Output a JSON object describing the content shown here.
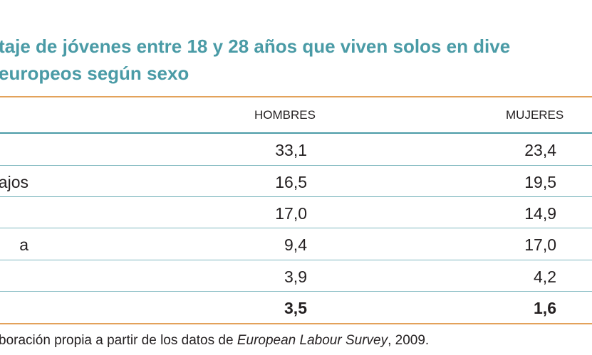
{
  "title": {
    "line1": "taje de jóvenes entre 18 y 28 años que viven solos en dive",
    "line2": "europeos según sexo"
  },
  "table": {
    "headers": {
      "men": "HOMBRES",
      "women": "MUJERES"
    },
    "rows": [
      {
        "label": "",
        "men": "33,1",
        "women": "23,4"
      },
      {
        "label": "ajos",
        "men": "16,5",
        "women": "19,5"
      },
      {
        "label": "",
        "men": "17,0",
        "women": "14,9"
      },
      {
        "label": "a",
        "men": "9,4",
        "women": "17,0"
      },
      {
        "label": "",
        "men": "3,9",
        "women": "4,2"
      },
      {
        "label": "",
        "men": "3,5",
        "women": "1,6"
      }
    ]
  },
  "source": {
    "prefix": "boración propia a partir de los datos de ",
    "italic": "European Labour Survey",
    "suffix": ", 2009."
  },
  "colors": {
    "title": "#4a9ba6",
    "accent_rule": "#e3a25a",
    "row_rule": "#7fb8bf"
  }
}
